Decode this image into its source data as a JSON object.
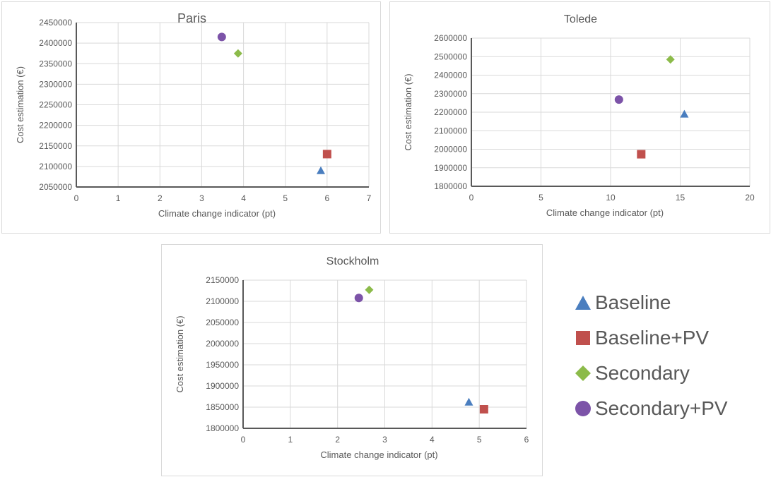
{
  "chart_data": [
    {
      "type": "scatter",
      "title": "Paris",
      "xlabel": "Climate change indicator (pt)",
      "ylabel": "Cost estimation (€)",
      "xlim": [
        0,
        7
      ],
      "xticks": [
        0,
        1,
        2,
        3,
        4,
        5,
        6,
        7
      ],
      "ylim": [
        2050000,
        2450000
      ],
      "yticks": [
        2050000,
        2100000,
        2150000,
        2200000,
        2250000,
        2300000,
        2350000,
        2400000,
        2450000
      ],
      "grid": true,
      "series": [
        {
          "name": "Baseline",
          "x": [
            5.85
          ],
          "y": [
            2090000
          ]
        },
        {
          "name": "Baseline+PV",
          "x": [
            6.0
          ],
          "y": [
            2130000
          ]
        },
        {
          "name": "Secondary",
          "x": [
            3.87
          ],
          "y": [
            2375000
          ]
        },
        {
          "name": "Secondary+PV",
          "x": [
            3.48
          ],
          "y": [
            2415000
          ]
        }
      ]
    },
    {
      "type": "scatter",
      "title": "Tolede",
      "xlabel": "Climate change indicator (pt)",
      "ylabel": "Cost estimation (€)",
      "xlim": [
        0,
        20
      ],
      "xticks": [
        0,
        5,
        10,
        15,
        20
      ],
      "ylim": [
        1800000,
        2600000
      ],
      "yticks": [
        1800000,
        1900000,
        2000000,
        2100000,
        2200000,
        2300000,
        2400000,
        2500000,
        2600000
      ],
      "grid": true,
      "series": [
        {
          "name": "Baseline",
          "x": [
            15.3
          ],
          "y": [
            2190000
          ]
        },
        {
          "name": "Baseline+PV",
          "x": [
            12.2
          ],
          "y": [
            1973000
          ]
        },
        {
          "name": "Secondary",
          "x": [
            14.3
          ],
          "y": [
            2485000
          ]
        },
        {
          "name": "Secondary+PV",
          "x": [
            10.6
          ],
          "y": [
            2268000
          ]
        }
      ]
    },
    {
      "type": "scatter",
      "title": "Stockholm",
      "xlabel": "Climate change indicator (pt)",
      "ylabel": "Cost estimation (€)",
      "xlim": [
        0,
        6
      ],
      "xticks": [
        0,
        1,
        2,
        3,
        4,
        5,
        6
      ],
      "ylim": [
        1800000,
        2150000
      ],
      "yticks": [
        1800000,
        1850000,
        1900000,
        1950000,
        2000000,
        2050000,
        2100000,
        2150000
      ],
      "grid": true,
      "series": [
        {
          "name": "Baseline",
          "x": [
            4.78
          ],
          "y": [
            1862000
          ]
        },
        {
          "name": "Baseline+PV",
          "x": [
            5.1
          ],
          "y": [
            1845000
          ]
        },
        {
          "name": "Secondary",
          "x": [
            2.67
          ],
          "y": [
            2127000
          ]
        },
        {
          "name": "Secondary+PV",
          "x": [
            2.45
          ],
          "y": [
            2108000
          ]
        }
      ]
    }
  ],
  "legend": {
    "position": "bottom-right",
    "items": [
      {
        "label": "Baseline",
        "marker": "triangle",
        "color": "#4a7ebf"
      },
      {
        "label": "Baseline+PV",
        "marker": "square",
        "color": "#c0504d"
      },
      {
        "label": "Secondary",
        "marker": "diamond",
        "color": "#8cbb4a"
      },
      {
        "label": "Secondary+PV",
        "marker": "circle",
        "color": "#7c53a8"
      }
    ]
  }
}
